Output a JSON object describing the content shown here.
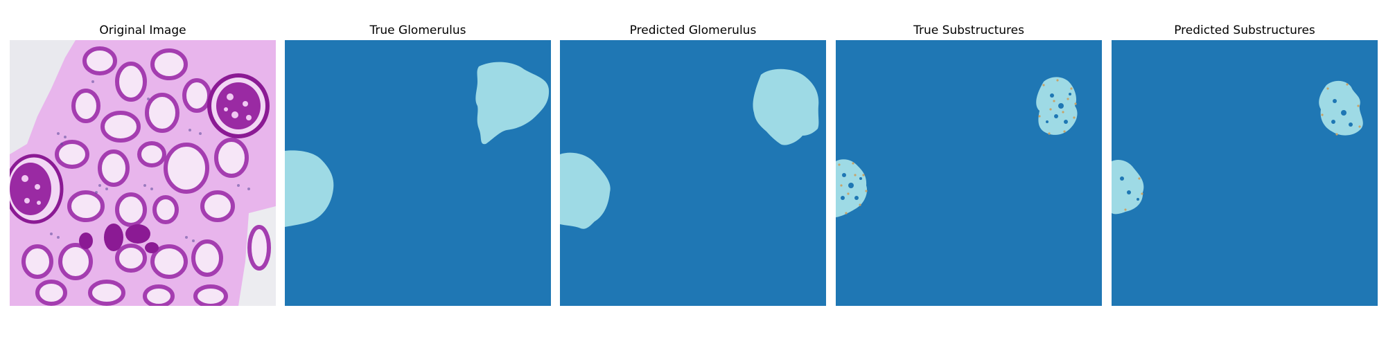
{
  "figure": {
    "colors": {
      "background_class": "#1f77b4",
      "glomerulus_class": "#9edae5",
      "substructure_speckle": "#c7a36a",
      "stain_dark": "#8b1a94",
      "stain_light": "#e7b3ea"
    },
    "panels": [
      {
        "title": "Original Image",
        "kind": "histology-image"
      },
      {
        "title": "True Glomerulus",
        "kind": "mask"
      },
      {
        "title": "Predicted Glomerulus",
        "kind": "mask"
      },
      {
        "title": "True Substructures",
        "kind": "substructure-mask"
      },
      {
        "title": "Predicted Substructures",
        "kind": "substructure-mask"
      }
    ]
  }
}
